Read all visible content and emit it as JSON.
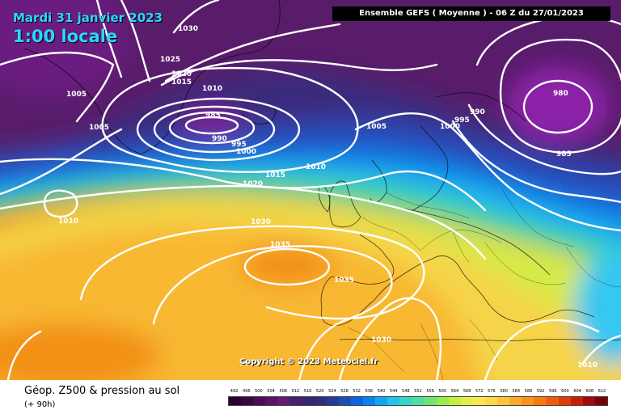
{
  "title": {
    "date": "Mardi 31 janvier 2023",
    "time": "1:00 locale"
  },
  "model_run": "Ensemble GEFS  ( Moyenne )  -  06 Z du 27/01/2023",
  "copyright": "Copyright © 2023 Meteociel.fr",
  "caption": {
    "main": "Géop. Z500 & pression au sol",
    "sub": "(+ 90h)"
  },
  "scale": {
    "ticks": [
      "492",
      "496",
      "500",
      "504",
      "508",
      "512",
      "516",
      "520",
      "524",
      "528",
      "532",
      "536",
      "540",
      "544",
      "548",
      "552",
      "556",
      "560",
      "564",
      "568",
      "572",
      "576",
      "580",
      "584",
      "588",
      "592",
      "596",
      "600",
      "604",
      "608",
      "612"
    ],
    "colors": [
      "#2a0030",
      "#3a0640",
      "#4b0d55",
      "#5a1366",
      "#651c72",
      "#48206e",
      "#37266e",
      "#2e2e7c",
      "#243c96",
      "#1a4fb8",
      "#1064dc",
      "#0a82f0",
      "#10a6f4",
      "#1ec4ec",
      "#34d6c8",
      "#4ce09c",
      "#70e670",
      "#98ec50",
      "#c0f040",
      "#e4f048",
      "#fae850",
      "#fcd848",
      "#fcc438",
      "#fcac28",
      "#fc9418",
      "#f87a10",
      "#f05c0c",
      "#e03a08",
      "#c81e08",
      "#a00a0a",
      "#780008"
    ]
  },
  "pressure_labels": [
    {
      "text": "1030"
    },
    {
      "text": "1025"
    },
    {
      "text": "1020"
    },
    {
      "text": "1015"
    },
    {
      "text": "1010"
    },
    {
      "text": "1005"
    },
    {
      "text": "985"
    },
    {
      "text": "990"
    },
    {
      "text": "995"
    },
    {
      "text": "1000"
    },
    {
      "text": "1005"
    },
    {
      "text": "1015"
    },
    {
      "text": "1020"
    },
    {
      "text": "1010"
    },
    {
      "text": "1010"
    },
    {
      "text": "1030"
    },
    {
      "text": "1035"
    },
    {
      "text": "1035"
    },
    {
      "text": "1030"
    },
    {
      "text": "990"
    },
    {
      "text": "995"
    },
    {
      "text": "1000"
    },
    {
      "text": "980"
    },
    {
      "text": "985"
    },
    {
      "text": "1010"
    },
    {
      "text": "1005"
    },
    {
      "text": "1010"
    }
  ]
}
